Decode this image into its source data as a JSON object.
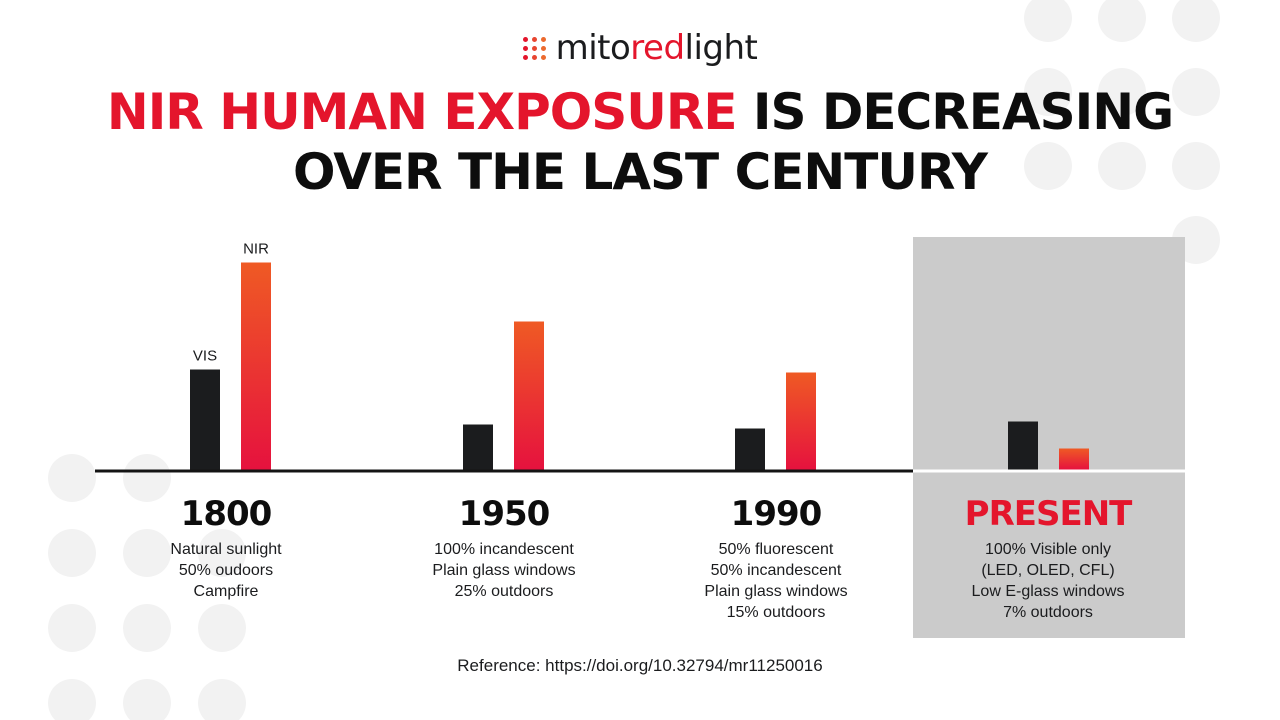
{
  "brand": {
    "name_prefix": "mito",
    "name_accent": "red",
    "name_suffix": "light",
    "logo_dot_colors": [
      "#e4152c",
      "#e84530",
      "#ec6a2e",
      "#e4152c",
      "#e84530",
      "#ec6a2e",
      "#e4152c",
      "#e84530",
      "#ec6a2e"
    ]
  },
  "header": {
    "title_accent": "NIR HUMAN EXPOSURE",
    "title_rest": " IS DECREASING",
    "title_line2": "OVER THE LAST CENTURY"
  },
  "colors": {
    "accent": "#e4152c",
    "vis_bar": "#1b1c1e",
    "nir_bar_top": "#ef5a24",
    "nir_bar_bottom": "#e6123e",
    "present_panel": "#cbcbcb",
    "background_dots": "#f2f2f2"
  },
  "chart_data": {
    "type": "bar",
    "title": "NIR HUMAN EXPOSURE IS DECREASING OVER THE LAST CENTURY",
    "categories": [
      "1800",
      "1950",
      "1990",
      "PRESENT"
    ],
    "series": [
      {
        "name": "VIS",
        "values": [
          100,
          45,
          41,
          48
        ]
      },
      {
        "name": "NIR",
        "values": [
          207,
          148,
          97,
          21
        ]
      }
    ],
    "ylim": [
      0,
      220
    ],
    "axis_ticks": false,
    "grid": false,
    "legend": "labels above first pair of bars",
    "highlighted_category": "PRESENT"
  },
  "periods": [
    {
      "year": "1800",
      "lines": [
        "Natural sunlight",
        "50% oudoors",
        "Campfire"
      ]
    },
    {
      "year": "1950",
      "lines": [
        "100% incandescent",
        "Plain glass windows",
        "25% outdoors"
      ]
    },
    {
      "year": "1990",
      "lines": [
        "50% fluorescent",
        "50% incandescent",
        "Plain glass windows",
        "15% outdoors"
      ]
    },
    {
      "year": "PRESENT",
      "lines": [
        "100% Visible only",
        "(LED, OLED, CFL)",
        "Low E-glass windows",
        "7% outdoors"
      ]
    }
  ],
  "footer": {
    "reference": "Reference: https://doi.org/10.32794/mr11250016"
  }
}
